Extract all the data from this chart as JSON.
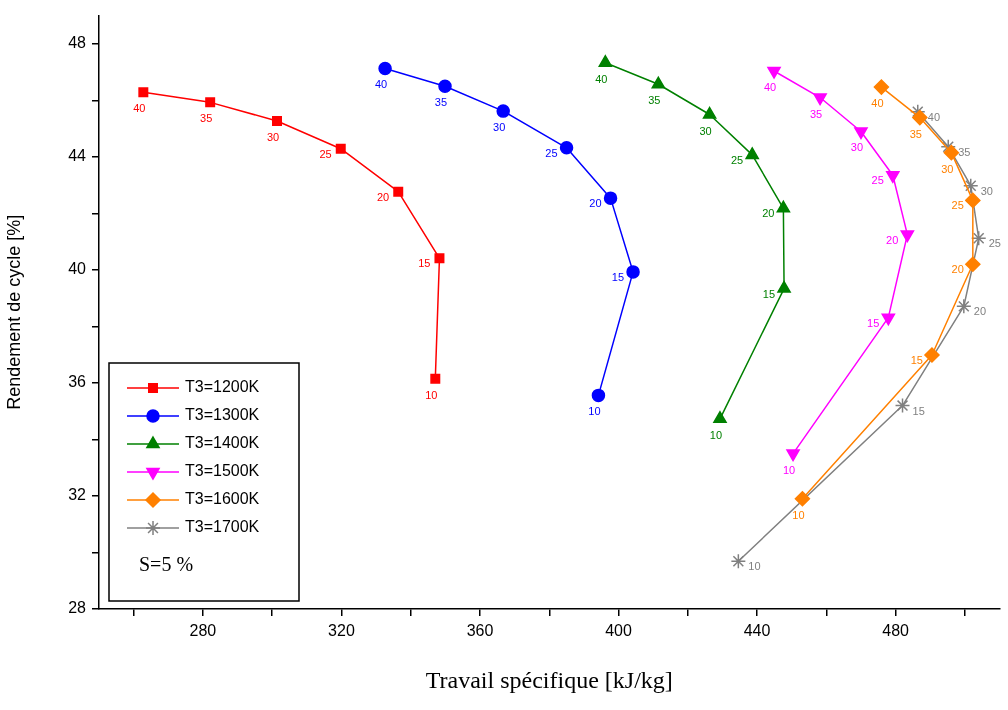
{
  "chart_data": {
    "type": "line",
    "xlabel": "Travail spécifique [kJ/kg]",
    "ylabel": "Rendement de cycle [%]",
    "xlim": [
      250,
      510
    ],
    "ylim": [
      28,
      49
    ],
    "xticks": [
      {
        "value": 260,
        "label": null
      },
      280,
      {
        "value": 300,
        "label": null
      },
      320,
      {
        "value": 340,
        "label": null
      },
      360,
      {
        "value": 380,
        "label": null
      },
      400,
      {
        "value": 420,
        "label": null
      },
      440,
      {
        "value": 460,
        "label": null
      },
      480,
      {
        "value": 500,
        "label": null
      }
    ],
    "yticks": [
      28,
      {
        "value": 30,
        "label": null
      },
      32,
      {
        "value": 34,
        "label": null
      },
      36,
      {
        "value": 38,
        "label": null
      },
      40,
      {
        "value": 42,
        "label": null
      },
      44,
      {
        "value": 46,
        "label": null
      },
      48
    ],
    "legend": "bottom left",
    "line_style": "solid",
    "annotations": [
      "S=5 %",
      {
        "text": "10",
        "x": 347.1,
        "y": 36.15
      },
      {
        "text": "15",
        "x": 348.3,
        "y": 40.41
      },
      {
        "text": "20",
        "x": 336.4,
        "y": 42.77
      },
      {
        "text": "25",
        "x": 319.8,
        "y": 44.29
      },
      {
        "text": "30",
        "x": 301.4,
        "y": 45.27
      },
      {
        "text": "35",
        "x": 282.1,
        "y": 45.93
      },
      {
        "text": "40",
        "x": 262.8,
        "y": 46.29
      },
      {
        "text": "10",
        "x": 394.2,
        "y": 35.56
      },
      {
        "text": "15",
        "x": 404.2,
        "y": 39.93
      },
      {
        "text": "20",
        "x": 397.7,
        "y": 42.54
      },
      {
        "text": "25",
        "x": 385.0,
        "y": 44.32
      },
      {
        "text": "30",
        "x": 366.7,
        "y": 45.62
      },
      {
        "text": "35",
        "x": 349.9,
        "y": 46.5
      },
      {
        "text": "40",
        "x": 332.6,
        "y": 47.13
      },
      {
        "text": "10",
        "x": 429.3,
        "y": 34.73
      },
      {
        "text": "15",
        "x": 447.8,
        "y": 39.34
      },
      {
        "text": "20",
        "x": 447.6,
        "y": 42.18
      },
      {
        "text": "25",
        "x": 438.6,
        "y": 44.07
      },
      {
        "text": "30",
        "x": 426.3,
        "y": 45.5
      },
      {
        "text": "35",
        "x": 411.5,
        "y": 46.57
      },
      {
        "text": "40",
        "x": 396.2,
        "y": 47.33
      },
      {
        "text": "10",
        "x": 450.4,
        "y": 33.5
      },
      {
        "text": "15",
        "x": 477.9,
        "y": 38.31
      },
      {
        "text": "20",
        "x": 483.4,
        "y": 41.25
      },
      {
        "text": "25",
        "x": 479.2,
        "y": 43.35
      },
      {
        "text": "30",
        "x": 470.0,
        "y": 44.9
      },
      {
        "text": "35",
        "x": 458.2,
        "y": 46.1
      },
      {
        "text": "40",
        "x": 444.9,
        "y": 47.04
      },
      {
        "text": "10",
        "x": 453.1,
        "y": 31.9
      },
      {
        "text": "15",
        "x": 490.5,
        "y": 36.99
      },
      {
        "text": "20",
        "x": 502.3,
        "y": 40.2
      },
      {
        "text": "25",
        "x": 502.3,
        "y": 42.46
      },
      {
        "text": "30",
        "x": 496.1,
        "y": 44.15
      },
      {
        "text": "35",
        "x": 487.0,
        "y": 45.39
      },
      {
        "text": "40",
        "x": 475.9,
        "y": 46.47
      },
      {
        "text": "10",
        "x": 434.6,
        "y": 29.69
      },
      {
        "text": "15",
        "x": 482.0,
        "y": 35.2
      },
      {
        "text": "20",
        "x": 499.7,
        "y": 38.71
      },
      {
        "text": "25",
        "x": 504.0,
        "y": 41.12
      },
      {
        "text": "30",
        "x": 501.7,
        "y": 42.98
      },
      {
        "text": "35",
        "x": 495.2,
        "y": 44.36
      },
      {
        "text": "40",
        "x": 486.4,
        "y": 45.6
      }
    ],
    "series": [
      {
        "name": "T3=1200K",
        "color": "#ff0000",
        "marker": "square",
        "x": [
          347.1,
          348.3,
          336.4,
          319.8,
          301.4,
          282.1,
          262.8
        ],
        "values": [
          36.15,
          40.41,
          42.77,
          44.29,
          45.27,
          45.93,
          46.29
        ]
      },
      {
        "name": "T3=1300K",
        "color": "#0000ff",
        "marker": "circle",
        "x": [
          394.2,
          404.2,
          397.7,
          385.0,
          366.7,
          349.9,
          332.6
        ],
        "values": [
          35.56,
          39.93,
          42.54,
          44.32,
          45.62,
          46.5,
          47.13
        ]
      },
      {
        "name": "T3=1400K",
        "color": "#008000",
        "marker": "triangle",
        "x": [
          429.3,
          447.8,
          447.6,
          438.6,
          426.3,
          411.5,
          396.2
        ],
        "values": [
          34.73,
          39.34,
          42.18,
          44.07,
          45.5,
          46.57,
          47.33
        ]
      },
      {
        "name": "T3=1500K",
        "color": "#ff00ff",
        "marker": "triangle_down",
        "x": [
          450.4,
          477.9,
          483.4,
          479.2,
          470.0,
          458.2,
          444.9
        ],
        "values": [
          33.5,
          38.31,
          41.25,
          43.35,
          44.9,
          46.1,
          47.04
        ]
      },
      {
        "name": "T3=1600K",
        "color": "#ff8000",
        "marker": "diamond",
        "x": [
          453.1,
          490.5,
          502.3,
          502.3,
          496.1,
          487.0,
          475.9
        ],
        "values": [
          31.9,
          36.99,
          40.2,
          42.46,
          44.15,
          45.39,
          46.47
        ]
      },
      {
        "name": "T3=1700K",
        "color": "#808080",
        "marker": "cross",
        "x": [
          434.6,
          482.0,
          499.7,
          504.0,
          501.7,
          495.2,
          486.4
        ],
        "values": [
          29.69,
          35.2,
          38.71,
          41.12,
          42.98,
          44.36,
          45.6
        ]
      }
    ]
  }
}
